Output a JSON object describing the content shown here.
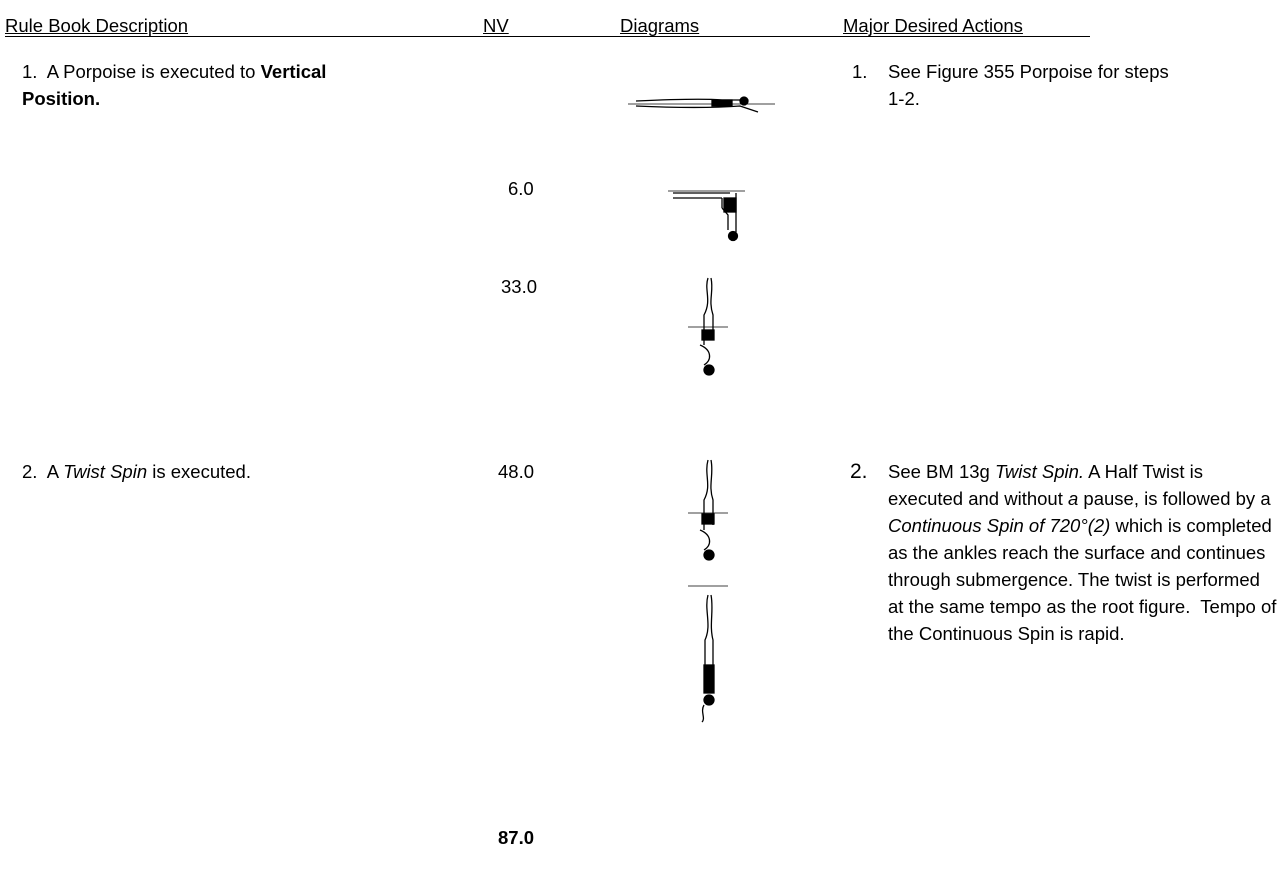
{
  "header": {
    "columns": [
      "Rule Book Description",
      "NV",
      "Diagrams",
      "Major Desired Actions"
    ]
  },
  "steps": [
    {
      "description": [
        {
          "text": "1.  A Porpoise is executed to "
        },
        {
          "text": "Vertical Position.",
          "bold": true
        }
      ],
      "nv": [
        "6.0",
        "33.0"
      ],
      "action_number": "1.",
      "action": [
        {
          "text": "See Figure 355 Porpoise for steps 1-2."
        }
      ]
    },
    {
      "description": [
        {
          "text": "2.  A "
        },
        {
          "text": "Twist Spin",
          "italic": true
        },
        {
          "text": " is executed."
        }
      ],
      "nv": [
        "48.0"
      ],
      "action_number": "2.",
      "action": [
        {
          "text": "See BM 13g "
        },
        {
          "text": "Twist Spin.",
          "italic": true
        },
        {
          "text": " A Half Twist is executed and without "
        },
        {
          "text": "a",
          "italic": true
        },
        {
          "text": " pause, is followed by a "
        },
        {
          "text": "Continuous Spin of 720°(2)",
          "italic": true
        },
        {
          "text": " which is completed as the ankles reach the surface and continues through submergence. The twist is performed at the same tempo as the root figure.  Tempo of the Continuous Spin is rapid."
        }
      ]
    }
  ],
  "total": "87.0"
}
